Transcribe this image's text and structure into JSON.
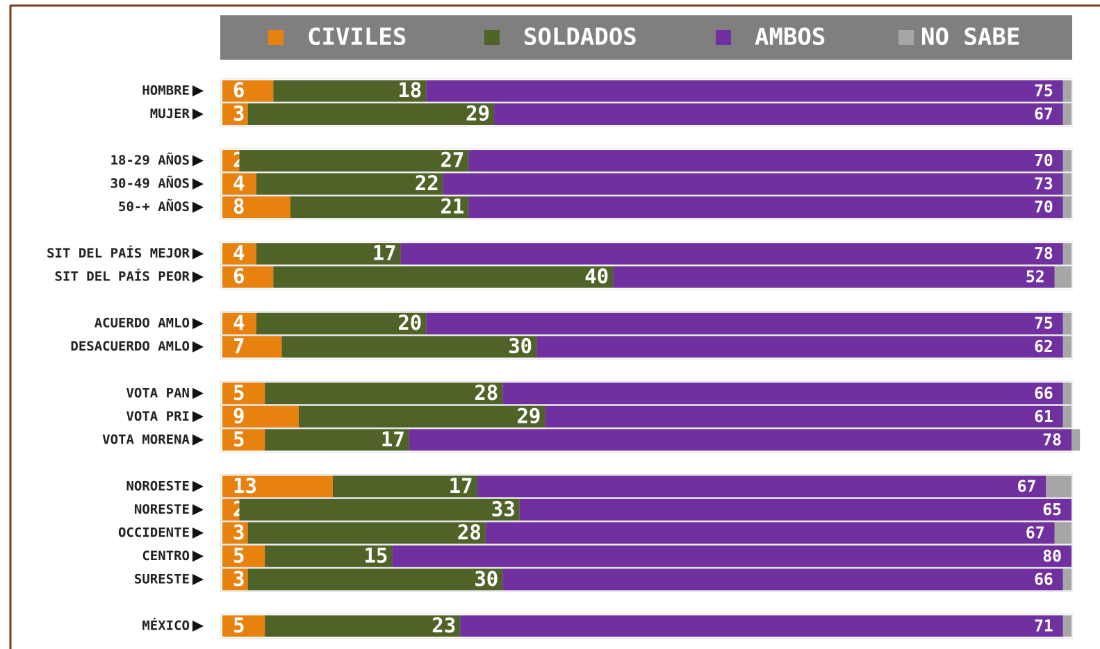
{
  "chart_data": {
    "type": "stacked-bar-horizontal",
    "categories": [
      "HOMBRE",
      "MUJER",
      null,
      "18-29 AÑOS",
      "30-49 AÑOS",
      "50-+ AÑOS",
      null,
      "SIT DEL PAÍS MEJOR",
      "SIT DEL PAÍS PEOR",
      null,
      "ACUERDO AMLO",
      "DESACUERDO AMLO",
      null,
      "VOTA PAN",
      "VOTA PRI",
      "VOTA MORENA",
      null,
      "NOROESTE",
      "NORESTE",
      "OCCIDENTE",
      "CENTRO",
      "SURESTE",
      null,
      "MÉXICO"
    ],
    "series": [
      {
        "name": "CIVILES",
        "color": "#e8820e",
        "values": [
          6,
          3,
          null,
          2,
          4,
          8,
          null,
          4,
          6,
          null,
          4,
          7,
          null,
          5,
          9,
          5,
          null,
          13,
          2,
          3,
          5,
          3,
          null,
          5
        ]
      },
      {
        "name": "SOLDADOS",
        "color": "#4f6228",
        "values": [
          18,
          29,
          null,
          27,
          22,
          21,
          null,
          17,
          40,
          null,
          20,
          30,
          null,
          28,
          29,
          17,
          null,
          17,
          33,
          28,
          15,
          30,
          null,
          23
        ]
      },
      {
        "name": "AMBOS",
        "color": "#7030a0",
        "values": [
          75,
          67,
          null,
          70,
          73,
          70,
          null,
          78,
          52,
          null,
          75,
          62,
          null,
          66,
          61,
          78,
          null,
          67,
          65,
          67,
          80,
          66,
          null,
          71
        ]
      },
      {
        "name": "NO SABE",
        "color": "#a6a6a6",
        "values": [
          1,
          1,
          null,
          1,
          1,
          1,
          null,
          1,
          2,
          null,
          1,
          1,
          null,
          1,
          1,
          1,
          null,
          3,
          0,
          2,
          0,
          1,
          null,
          1
        ]
      }
    ]
  }
}
